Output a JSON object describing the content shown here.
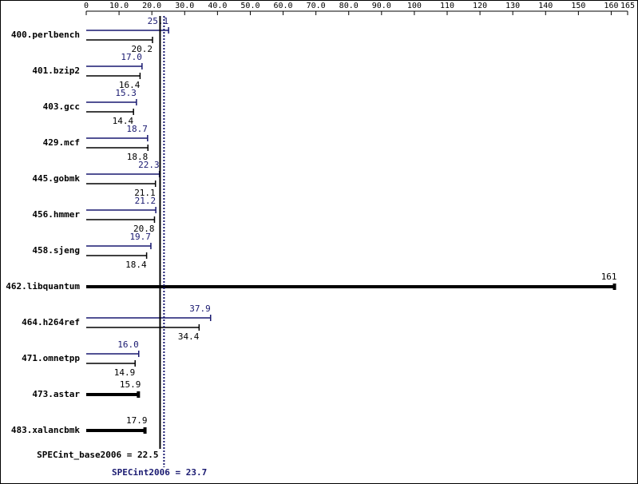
{
  "chart_data": {
    "type": "bar",
    "orientation": "horizontal",
    "categories": [
      "400.perlbench",
      "401.bzip2",
      "403.gcc",
      "429.mcf",
      "445.gobmk",
      "456.hmmer",
      "458.sjeng",
      "462.libquantum",
      "464.h264ref",
      "471.omnetpp",
      "473.astar",
      "483.xalancbmk"
    ],
    "series": [
      {
        "color": "#191970",
        "values": [
          25.1,
          17.0,
          15.3,
          18.7,
          22.3,
          21.2,
          19.7,
          null,
          37.9,
          16.0,
          null,
          null
        ],
        "value_labels": [
          "25.1",
          "17.0",
          "15.3",
          "18.7",
          "22.3",
          "21.2",
          "19.7",
          null,
          "37.9",
          "16.0",
          null,
          null
        ]
      },
      {
        "color": "#000000",
        "values": [
          20.2,
          16.4,
          14.4,
          18.8,
          21.1,
          20.8,
          18.4,
          161,
          34.4,
          14.9,
          15.9,
          17.9
        ],
        "value_labels": [
          "20.2",
          "16.4",
          "14.4",
          "18.8",
          "21.1",
          "20.8",
          "18.4",
          "161",
          "34.4",
          "14.9",
          "15.9",
          "17.9"
        ]
      }
    ],
    "xlim": [
      0,
      165
    ],
    "xticks": [
      0,
      {
        "value": 10,
        "label": "10.0"
      },
      {
        "value": 20,
        "label": "20.0"
      },
      {
        "value": 30,
        "label": "30.0"
      },
      {
        "value": 40,
        "label": "40.0"
      },
      {
        "value": 50,
        "label": "50.0"
      },
      {
        "value": 60,
        "label": "60.0"
      },
      {
        "value": 70,
        "label": "70.0"
      },
      {
        "value": 80,
        "label": "80.0"
      },
      {
        "value": 90,
        "label": "90.0"
      },
      100,
      110,
      120,
      130,
      140,
      150,
      160,
      165
    ],
    "reference_lines": [
      {
        "label": "SPECint_base2006 = 22.5",
        "value": 22.5,
        "color": "#000000",
        "style": "solid"
      },
      {
        "label": "SPECint2006 = 23.7",
        "value": 23.7,
        "color": "#191970",
        "style": "dotted"
      }
    ]
  }
}
